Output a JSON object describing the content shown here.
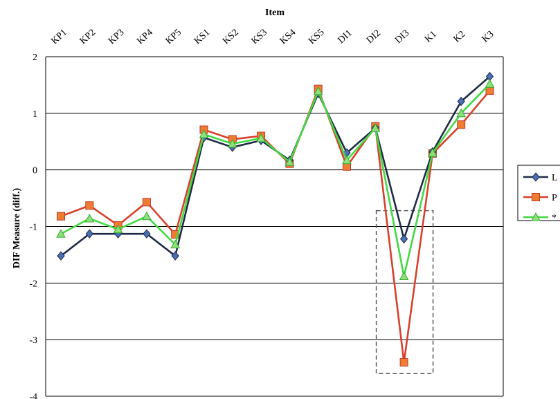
{
  "chart_data": {
    "type": "line",
    "title": "",
    "xlabel": "Item",
    "ylabel": "DIF Measure (diff.)",
    "categories": [
      "KP1",
      "KP2",
      "KP3",
      "KP4",
      "KP5",
      "KS1",
      "KS2",
      "KS3",
      "KS4",
      "KS5",
      "DI1",
      "DI2",
      "DI3",
      "K1",
      "K2",
      "K3"
    ],
    "yticks": [
      "2",
      "1",
      "0",
      "-1",
      "-2",
      "-3",
      "-4"
    ],
    "ylim": [
      -4,
      2
    ],
    "grid": "horizontal",
    "legend_position": "right",
    "series": [
      {
        "name": "L",
        "color": "#1f2a44",
        "marker": "diamond",
        "values": [
          -1.52,
          -1.13,
          -1.13,
          -1.13,
          -1.52,
          0.57,
          0.4,
          0.52,
          0.17,
          1.35,
          0.3,
          0.74,
          -1.22,
          0.32,
          1.21,
          1.65
        ]
      },
      {
        "name": "P",
        "color": "#d9402b",
        "marker": "square",
        "values": [
          -0.82,
          -0.63,
          -0.98,
          -0.57,
          -1.14,
          0.71,
          0.54,
          0.6,
          0.11,
          1.43,
          0.06,
          0.77,
          -3.4,
          0.29,
          0.8,
          1.4
        ]
      },
      {
        "name": "*",
        "color": "#44d944",
        "marker": "triangle",
        "values": [
          -1.13,
          -0.86,
          -1.05,
          -0.82,
          -1.32,
          0.63,
          0.46,
          0.56,
          0.14,
          1.39,
          0.17,
          0.74,
          -1.88,
          0.3,
          1.0,
          1.52
        ]
      }
    ],
    "annotation": {
      "type": "dashed-box",
      "x_start": "DI3",
      "x_end": "DI3",
      "y_top": -0.72,
      "y_bottom": -3.6
    }
  }
}
